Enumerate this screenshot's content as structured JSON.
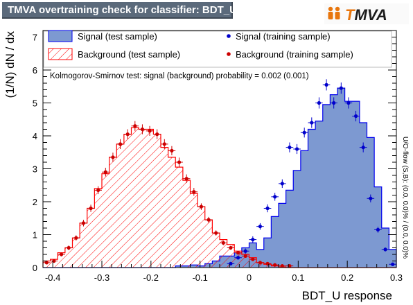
{
  "title": "TMVA overtraining check for classifier: BDT_U",
  "logo": {
    "text": "TMVA",
    "accent": "#e8760d",
    "dark": "#1c1c1c",
    "icon": "tmva-people-icon"
  },
  "side_note": "U/O-flow (S,B): (0.0, 0.0)% / (0.0, 0.0)%",
  "ks_text": "Kolmogorov-Smirnov test: signal (background) probability = 0.002 (0.001)",
  "colors": {
    "signal_fill": "#7d99d1",
    "signal_line": "#0000ee",
    "signal_point": "#0000cc",
    "background_line": "#ff0000",
    "background_point": "#cc0000",
    "frame": "#000000"
  },
  "chart_data": {
    "type": "histogram",
    "xlabel": "BDT_U response",
    "ylabel": "(1/N) dN / dx",
    "xlim": [
      -0.42,
      0.3
    ],
    "ylim": [
      0,
      7.2
    ],
    "x_ticks": [
      "-0.4",
      "-0.3",
      "-0.2",
      "-0.1",
      "0",
      "0.1",
      "0.2",
      "0.3"
    ],
    "x_tick_values": [
      -0.4,
      -0.3,
      -0.2,
      -0.1,
      0,
      0.1,
      0.2,
      0.3
    ],
    "y_ticks": [
      "0",
      "1",
      "2",
      "3",
      "4",
      "5",
      "6",
      "7"
    ],
    "y_tick_values": [
      0,
      1,
      2,
      3,
      4,
      5,
      6,
      7
    ],
    "bin_edges": [
      -0.42,
      -0.405,
      -0.39,
      -0.375,
      -0.36,
      -0.345,
      -0.33,
      -0.315,
      -0.3,
      -0.285,
      -0.27,
      -0.255,
      -0.24,
      -0.225,
      -0.21,
      -0.195,
      -0.18,
      -0.165,
      -0.15,
      -0.135,
      -0.12,
      -0.105,
      -0.09,
      -0.075,
      -0.06,
      -0.045,
      -0.03,
      -0.015,
      0.0,
      0.015,
      0.03,
      0.045,
      0.06,
      0.075,
      0.09,
      0.105,
      0.12,
      0.135,
      0.15,
      0.165,
      0.18,
      0.195,
      0.21,
      0.225,
      0.24,
      0.255,
      0.27,
      0.285,
      0.3
    ],
    "legend": [
      {
        "label": "Signal (test sample)",
        "kind": "signal-fill"
      },
      {
        "label": "Signal (training sample)",
        "kind": "signal-points"
      },
      {
        "label": "Background (test sample)",
        "kind": "background-hatch"
      },
      {
        "label": "Background (training sample)",
        "kind": "background-points"
      }
    ],
    "legend_placement": "top",
    "series": [
      {
        "name": "Signal (test sample)",
        "style": "filled-histogram",
        "values": [
          0,
          0,
          0,
          0,
          0,
          0,
          0,
          0,
          0,
          0,
          0,
          0,
          0,
          0,
          0,
          0,
          0,
          0,
          0.05,
          0.05,
          0.08,
          0.05,
          0.12,
          0.2,
          0.35,
          0.35,
          0.45,
          0.6,
          0.75,
          0.55,
          0.9,
          1.55,
          1.95,
          2.35,
          2.95,
          3.55,
          4.2,
          4.45,
          4.95,
          5.25,
          5.45,
          5.05,
          5.05,
          4.4,
          3.95,
          2.45,
          1.2,
          0.55
        ]
      },
      {
        "name": "Background (test sample)",
        "style": "hatched-histogram",
        "values": [
          0.2,
          0.25,
          0.45,
          0.6,
          0.9,
          1.35,
          1.8,
          2.4,
          2.85,
          3.35,
          3.75,
          4.05,
          4.25,
          4.2,
          4.2,
          4.05,
          3.65,
          3.35,
          3.05,
          2.65,
          2.25,
          1.85,
          1.45,
          1.05,
          0.85,
          0.7,
          0.5,
          0.4,
          0.3,
          0.15,
          0.1,
          0.05,
          0.02,
          0,
          0,
          0,
          0,
          0,
          0,
          0,
          0,
          0,
          0,
          0,
          0,
          0,
          0,
          0
        ]
      },
      {
        "name": "Signal (training sample)",
        "style": "points",
        "x": [
          -0.0375,
          -0.0225,
          -0.0075,
          0.0075,
          0.0225,
          0.0375,
          0.0525,
          0.0675,
          0.0825,
          0.0975,
          0.1125,
          0.1275,
          0.1425,
          0.1575,
          0.1725,
          0.1875,
          0.2025,
          0.2175,
          0.2325,
          0.2475,
          0.2625,
          0.2775,
          0.2925
        ],
        "y": [
          0.12,
          0.3,
          0.5,
          0.85,
          1.25,
          1.8,
          2.15,
          2.55,
          3.65,
          3.6,
          4.1,
          4.4,
          5.0,
          5.55,
          5.0,
          5.45,
          5.0,
          4.6,
          3.65,
          2.1,
          1.15,
          0.55,
          0.1
        ],
        "y_err": [
          0.05,
          0.06,
          0.08,
          0.1,
          0.1,
          0.12,
          0.12,
          0.13,
          0.15,
          0.15,
          0.15,
          0.16,
          0.17,
          0.17,
          0.17,
          0.17,
          0.17,
          0.16,
          0.15,
          0.12,
          0.09,
          0.06,
          0.03
        ]
      },
      {
        "name": "Background (training sample)",
        "style": "points",
        "x": [
          -0.4125,
          -0.3975,
          -0.3825,
          -0.3675,
          -0.3525,
          -0.3375,
          -0.3225,
          -0.3075,
          -0.2925,
          -0.2775,
          -0.2625,
          -0.2475,
          -0.2325,
          -0.2175,
          -0.2025,
          -0.1875,
          -0.1725,
          -0.1575,
          -0.1425,
          -0.1275,
          -0.1125,
          -0.0975,
          -0.0825,
          -0.0675,
          -0.0525,
          -0.0375,
          -0.0225,
          -0.0075,
          0.0075,
          0.0225,
          0.0375,
          0.0525,
          0.0675,
          0.0825
        ],
        "y": [
          0.15,
          0.2,
          0.4,
          0.6,
          0.9,
          1.35,
          1.8,
          2.35,
          2.9,
          3.35,
          3.75,
          4.05,
          4.3,
          4.2,
          4.15,
          4.05,
          3.75,
          3.55,
          3.2,
          2.7,
          2.3,
          1.85,
          1.45,
          1.05,
          0.75,
          0.6,
          0.45,
          0.35,
          0.25,
          0.15,
          0.12,
          0.08,
          0.05,
          0.05
        ],
        "y_err": [
          0.04,
          0.05,
          0.06,
          0.07,
          0.08,
          0.1,
          0.11,
          0.12,
          0.13,
          0.14,
          0.15,
          0.15,
          0.15,
          0.15,
          0.15,
          0.15,
          0.15,
          0.14,
          0.14,
          0.13,
          0.12,
          0.1,
          0.09,
          0.08,
          0.07,
          0.06,
          0.05,
          0.05,
          0.04,
          0.03,
          0.03,
          0.02,
          0.02,
          0.02
        ]
      }
    ]
  }
}
